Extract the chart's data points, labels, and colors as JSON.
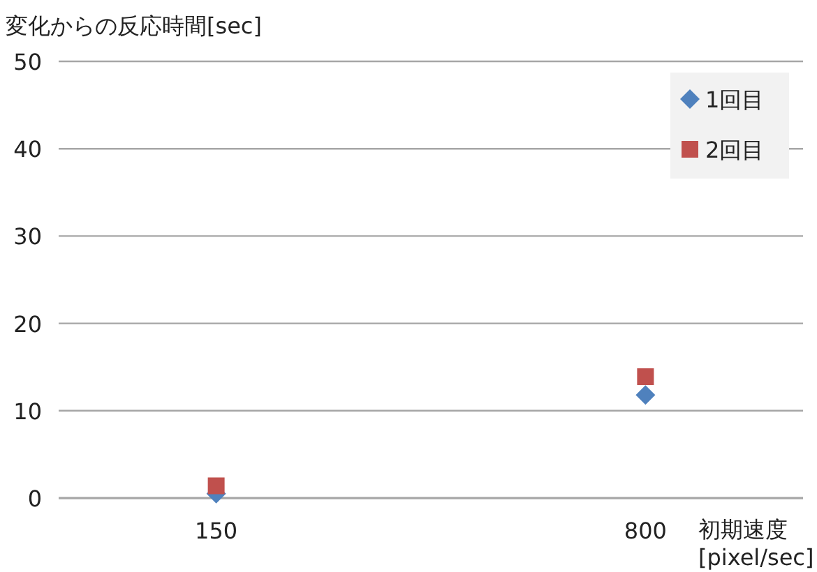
{
  "chart_data": {
    "type": "scatter",
    "ylabel": "変化からの反応時間[sec]",
    "xlabel": "初期速度\n[pixel/sec]",
    "categories": [
      "150",
      "800"
    ],
    "series": [
      {
        "name": "1回目",
        "color": "#4f81bd",
        "marker": "diamond",
        "values": [
          0.5,
          11.8
        ]
      },
      {
        "name": "2回目",
        "color": "#c0504d",
        "marker": "square",
        "values": [
          1.4,
          13.9
        ]
      }
    ],
    "ylim": [
      0,
      50
    ],
    "yticks": [
      0,
      10,
      20,
      30,
      40,
      50
    ],
    "grid": "y",
    "legend": "top right"
  }
}
